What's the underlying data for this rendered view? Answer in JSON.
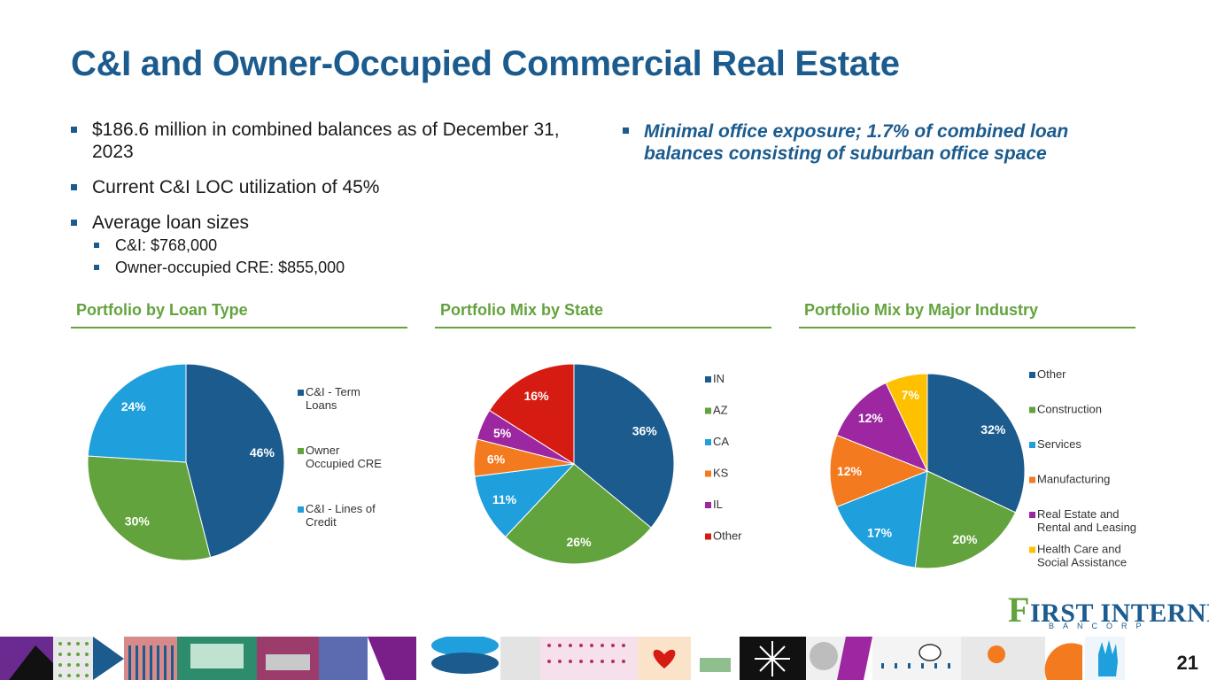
{
  "title": "C&I and Owner-Occupied Commercial Real Estate",
  "bullets": {
    "b1": "$186.6 million in combined balances as of December 31, 2023",
    "b2": "Current C&I LOC utilization of 45%",
    "b3": "Average loan sizes",
    "sub1": "C&I: $768,000",
    "sub2": "Owner-occupied CRE: $855,000",
    "right": "Minimal office exposure; 1.7% of combined loan balances consisting of suburban office space"
  },
  "colors": {
    "title": "#1b5b8e",
    "section": "#63a33d",
    "slices": [
      "#1b5b8e",
      "#63a33d",
      "#1f9fdc",
      "#f47a20",
      "#9c27a0",
      "#d61c12",
      "#ffc000"
    ]
  },
  "chart_data": [
    {
      "type": "pie",
      "title": "Portfolio by Loan Type",
      "labels": [
        "C&I - Term Loans",
        "Owner Occupied CRE",
        "C&I - Lines of Credit"
      ],
      "legend_lines": [
        [
          "C&I - Term",
          "Loans"
        ],
        [
          "Owner",
          "Occupied CRE"
        ],
        [
          "C&I - Lines of",
          "Credit"
        ]
      ],
      "values": [
        46,
        30,
        24
      ],
      "data_labels": [
        "46%",
        "30%",
        "24%"
      ],
      "colors": [
        "#1b5b8e",
        "#63a33d",
        "#1f9fdc"
      ],
      "legend_position": "right"
    },
    {
      "type": "pie",
      "title": "Portfolio Mix by State",
      "labels": [
        "IN",
        "AZ",
        "CA",
        "KS",
        "IL",
        "Other"
      ],
      "legend_lines": [
        [
          "IN"
        ],
        [
          "AZ"
        ],
        [
          "CA"
        ],
        [
          "KS"
        ],
        [
          "IL"
        ],
        [
          "Other"
        ]
      ],
      "values": [
        36,
        26,
        11,
        6,
        5,
        16
      ],
      "data_labels": [
        "36%",
        "26%",
        "11%",
        "6%",
        "5%",
        "16%"
      ],
      "colors": [
        "#1b5b8e",
        "#63a33d",
        "#1f9fdc",
        "#f47a20",
        "#9c27a0",
        "#d61c12"
      ],
      "legend_position": "right"
    },
    {
      "type": "pie",
      "title": "Portfolio Mix by Major Industry",
      "labels": [
        "Other",
        "Construction",
        "Services",
        "Manufacturing",
        "Real Estate and Rental and Leasing",
        "Health Care and Social Assistance"
      ],
      "legend_lines": [
        [
          "Other"
        ],
        [
          "Construction"
        ],
        [
          "Services"
        ],
        [
          "Manufacturing"
        ],
        [
          "Real Estate and",
          "Rental and Leasing"
        ],
        [
          "Health Care and",
          "Social Assistance"
        ]
      ],
      "values": [
        32,
        20,
        17,
        12,
        12,
        7
      ],
      "data_labels": [
        "32%",
        "20%",
        "17%",
        "12%",
        "12%",
        "7%"
      ],
      "colors": [
        "#1b5b8e",
        "#63a33d",
        "#1f9fdc",
        "#f47a20",
        "#9c27a0",
        "#ffc000"
      ],
      "legend_position": "right"
    }
  ],
  "logo": {
    "main_initial": "F",
    "main_rest": "IRST INTERNET",
    "sub": "BANCORP"
  },
  "page_number": "21"
}
